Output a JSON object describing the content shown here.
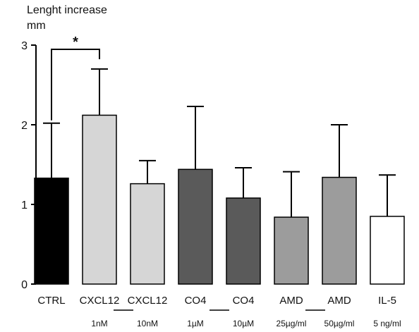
{
  "chart_data": {
    "type": "bar",
    "ylabel_line1": "Lenght increase",
    "ylabel_line2": "mm",
    "ylim": [
      0,
      3
    ],
    "yticks": [
      "0",
      "1",
      "2",
      "3"
    ],
    "grid": false,
    "categories": [
      "CTRL",
      "CXCL12",
      "CXCL12",
      "CO4",
      "CO4",
      "AMD",
      "AMD",
      "IL-5"
    ],
    "doses": [
      "",
      "1nM",
      "10nM",
      "1µM",
      "10µM",
      "25µg/ml",
      "50µg/ml",
      "5 ng/ml"
    ],
    "values": [
      1.33,
      2.12,
      1.26,
      1.44,
      1.08,
      0.84,
      1.34,
      0.85
    ],
    "error_upper": [
      2.02,
      2.7,
      1.55,
      2.23,
      1.46,
      1.41,
      2.0,
      1.37
    ],
    "bar_colors": [
      "#000000",
      "#d6d6d6",
      "#d6d6d6",
      "#5a5a5a",
      "#5a5a5a",
      "#9c9c9c",
      "#9c9c9c",
      "#ffffff"
    ],
    "significance": {
      "from": "CTRL",
      "to": "CXCL12",
      "label": "*"
    }
  }
}
